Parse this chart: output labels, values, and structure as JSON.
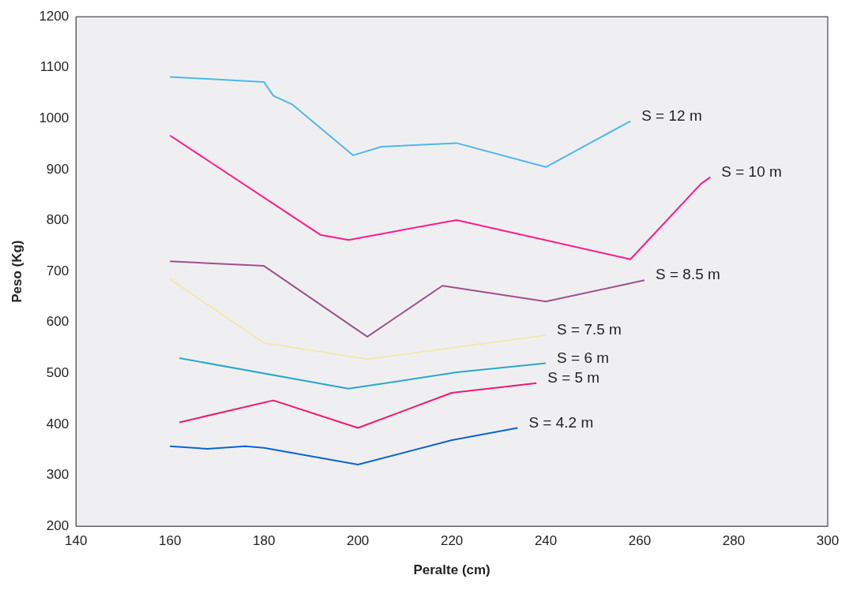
{
  "chart_data": {
    "type": "line",
    "xlabel": "Peralte (cm)",
    "ylabel": "Peso (Kg)",
    "xlim": [
      140,
      300
    ],
    "xticks": [
      140,
      160,
      180,
      200,
      220,
      240,
      260,
      280,
      300
    ],
    "ylim": [
      200,
      1200
    ],
    "yticks": [
      200,
      300,
      400,
      500,
      600,
      700,
      800,
      900,
      1000,
      1100,
      1200
    ],
    "grid": false,
    "legend": false,
    "marker": "none",
    "line_style": "solid",
    "series": [
      {
        "name": "S = 12 m",
        "color": "#4db8e8",
        "x": [
          160,
          180,
          182,
          186,
          199,
          205,
          221,
          240,
          258
        ],
        "values": [
          1082,
          1072,
          1045,
          1028,
          928,
          945,
          952,
          905,
          995
        ]
      },
      {
        "name": "S = 10 m",
        "color": "#ff1a8c",
        "x": [
          160,
          192,
          198,
          221,
          258,
          273,
          275
        ],
        "values": [
          967,
          772,
          762,
          801,
          724,
          872,
          885
        ]
      },
      {
        "name": "S = 8.5 m",
        "color": "#a0508a",
        "x": [
          160,
          180,
          202,
          218,
          240,
          261
        ],
        "values": [
          720,
          711,
          572,
          672,
          641,
          683
        ]
      },
      {
        "name": "S = 7.5 m",
        "color": "#f2e8b0",
        "x": [
          160,
          180,
          202,
          240
        ],
        "values": [
          685,
          560,
          528,
          575
        ]
      },
      {
        "name": "S = 6 m",
        "color": "#2aa8c8",
        "x": [
          162,
          198,
          221,
          240
        ],
        "values": [
          530,
          470,
          502,
          520
        ]
      },
      {
        "name": "S = 5 m",
        "color": "#f0186e",
        "x": [
          162,
          182,
          200,
          220,
          238
        ],
        "values": [
          404,
          447,
          393,
          462,
          481
        ]
      },
      {
        "name": "S = 4.2 m",
        "color": "#0a64d2",
        "x": [
          160,
          168,
          176,
          180,
          200,
          220,
          234
        ],
        "values": [
          357,
          352,
          357,
          354,
          321,
          369,
          393
        ]
      }
    ]
  }
}
